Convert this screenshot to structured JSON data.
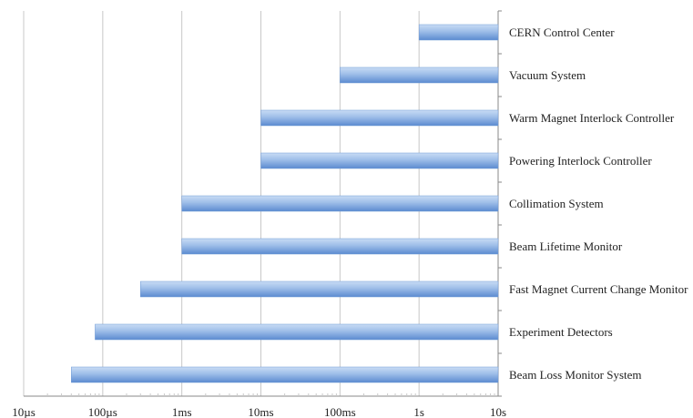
{
  "chart_data": {
    "type": "bar",
    "orientation": "horizontal",
    "x_scale": "log",
    "x_unit": "seconds",
    "xlim": [
      1e-05,
      10
    ],
    "x_ticks": [
      {
        "value": 1e-05,
        "label": "10µs"
      },
      {
        "value": 0.0001,
        "label": "100µs"
      },
      {
        "value": 0.001,
        "label": "1ms"
      },
      {
        "value": 0.01,
        "label": "10ms"
      },
      {
        "value": 0.1,
        "label": "100ms"
      },
      {
        "value": 1,
        "label": "1s"
      },
      {
        "value": 10,
        "label": "10s"
      }
    ],
    "grid": true,
    "bar_end": 10,
    "categories": [
      "CERN Control Center",
      "Vacuum System",
      "Warm Magnet Interlock Controller",
      "Powering Interlock Controller",
      "Collimation System",
      "Beam Lifetime Monitor",
      "Fast Magnet Current Change Monitor",
      "Experiment Detectors",
      "Beam Loss Monitor System"
    ],
    "values": [
      1,
      0.1,
      0.01,
      0.01,
      0.001,
      0.001,
      0.0003,
      8e-05,
      4e-05
    ],
    "colors": {
      "bar_light": "#c9dcf5",
      "bar_mid": "#8fb4e3",
      "bar_dark": "#5b8bd0",
      "grid": "#c8c8c8",
      "axis": "#8a8a8a"
    }
  }
}
